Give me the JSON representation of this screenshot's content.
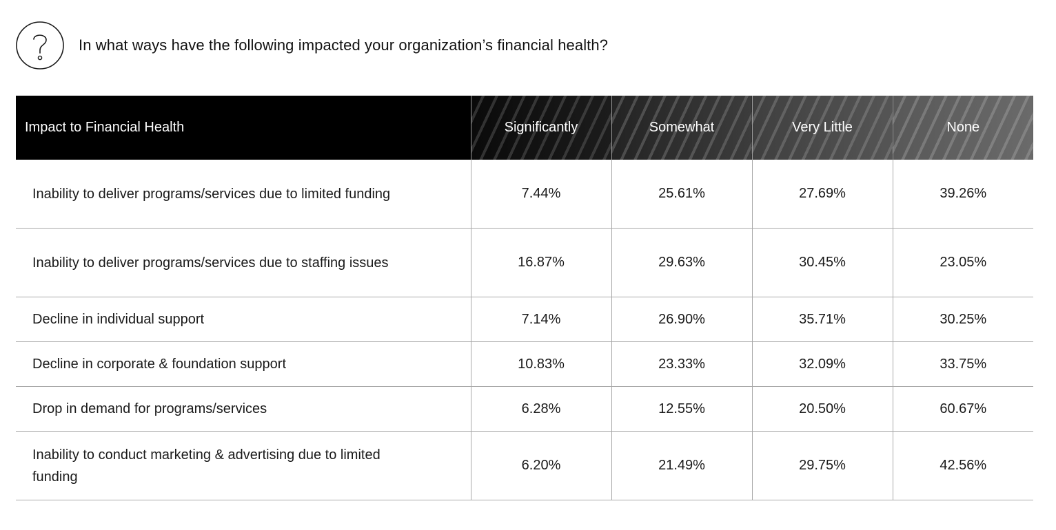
{
  "question": {
    "icon": "question-mark-circle-icon",
    "text": "In what ways have the following impacted your organization’s financial health?"
  },
  "table": {
    "headers": [
      "Impact to Financial Health",
      "Significantly",
      "Somewhat",
      "Very Little",
      "None"
    ],
    "rows": [
      {
        "label": "Inability to deliver programs/services due to limited funding",
        "values": [
          "7.44%",
          "25.61%",
          "27.69%",
          "39.26%"
        ]
      },
      {
        "label": "Inability to deliver programs/services due to staffing issues",
        "values": [
          "16.87%",
          "29.63%",
          "30.45%",
          "23.05%"
        ]
      },
      {
        "label": "Decline in individual support",
        "values": [
          "7.14%",
          "26.90%",
          "35.71%",
          "30.25%"
        ]
      },
      {
        "label": "Decline in corporate & foundation support",
        "values": [
          "10.83%",
          "23.33%",
          "32.09%",
          "33.75%"
        ]
      },
      {
        "label": "Drop in demand for programs/services",
        "values": [
          "6.28%",
          "12.55%",
          "20.50%",
          "60.67%"
        ]
      },
      {
        "label": "Inability to conduct marketing & advertising due to limited funding",
        "values": [
          "6.20%",
          "21.49%",
          "29.75%",
          "42.56%"
        ]
      }
    ]
  },
  "colors": {
    "header_dark": "#000000",
    "header_light": "#6a6a6a",
    "grid_line": "#a8a8a8",
    "text": "#1a1a1a"
  }
}
